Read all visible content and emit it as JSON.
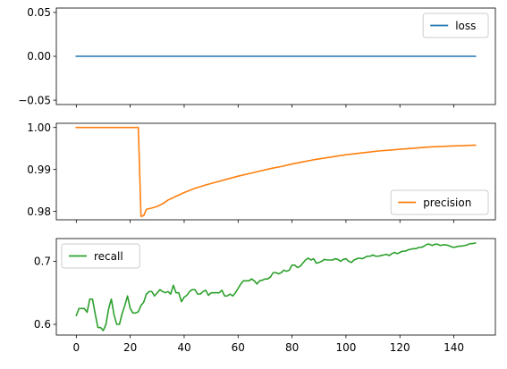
{
  "chart_data": [
    {
      "type": "line",
      "series": [
        {
          "name": "loss",
          "color": "#1f77b4",
          "x": [
            0,
            148
          ],
          "y": [
            0.0,
            0.0
          ]
        }
      ],
      "xlim": [
        -7.4,
        155.4
      ],
      "ylim": [
        -0.055,
        0.055
      ],
      "xticks": [
        0,
        20,
        40,
        60,
        80,
        100,
        120,
        140
      ],
      "yticks": [
        -0.05,
        0.0,
        0.05
      ],
      "ytick_labels": [
        "−0.05",
        "0.00",
        "0.05"
      ],
      "show_xtick_labels": false,
      "legend": "top-right",
      "grid": false
    },
    {
      "type": "line",
      "series": [
        {
          "name": "precision",
          "color": "#ff7f0e",
          "x": [
            0,
            23,
            24,
            25,
            26,
            28,
            30,
            32,
            34,
            36,
            40,
            44,
            48,
            52,
            56,
            60,
            64,
            68,
            72,
            76,
            80,
            84,
            88,
            92,
            96,
            100,
            104,
            108,
            112,
            116,
            120,
            124,
            128,
            132,
            136,
            140,
            144,
            148
          ],
          "y": [
            1.0,
            1.0,
            0.9788,
            0.979,
            0.9805,
            0.9808,
            0.9812,
            0.9818,
            0.9827,
            0.9833,
            0.9845,
            0.9855,
            0.9863,
            0.987,
            0.9877,
            0.9884,
            0.989,
            0.9896,
            0.9902,
            0.9907,
            0.9913,
            0.9918,
            0.9923,
            0.9927,
            0.9931,
            0.9935,
            0.9938,
            0.9941,
            0.9944,
            0.9946,
            0.9948,
            0.995,
            0.9952,
            0.9954,
            0.9955,
            0.9956,
            0.9957,
            0.9958
          ]
        }
      ],
      "xlim": [
        -7.4,
        155.4
      ],
      "ylim": [
        0.978,
        1.001
      ],
      "xticks": [
        0,
        20,
        40,
        60,
        80,
        100,
        120,
        140
      ],
      "yticks": [
        0.98,
        0.99,
        1.0
      ],
      "ytick_labels": [
        "0.98",
        "0.99",
        "1.00"
      ],
      "show_xtick_labels": false,
      "legend": "bottom-right",
      "grid": false
    },
    {
      "type": "line",
      "series": [
        {
          "name": "recall",
          "color": "#2ca02c",
          "x": [
            0,
            1,
            2,
            3,
            4,
            5,
            6,
            7,
            8,
            9,
            10,
            11,
            12,
            13,
            14,
            15,
            16,
            17,
            18,
            19,
            20,
            21,
            22,
            23,
            24,
            25,
            26,
            27,
            28,
            29,
            30,
            31,
            32,
            33,
            34,
            35,
            36,
            37,
            38,
            39,
            40,
            41,
            42,
            43,
            44,
            45,
            46,
            47,
            48,
            49,
            50,
            51,
            52,
            53,
            54,
            55,
            56,
            57,
            58,
            59,
            60,
            61,
            62,
            63,
            64,
            65,
            66,
            67,
            68,
            69,
            70,
            71,
            72,
            73,
            74,
            75,
            76,
            77,
            78,
            79,
            80,
            81,
            82,
            83,
            84,
            85,
            86,
            87,
            88,
            89,
            90,
            91,
            92,
            93,
            94,
            95,
            96,
            97,
            98,
            99,
            100,
            101,
            102,
            103,
            104,
            105,
            106,
            107,
            108,
            109,
            110,
            111,
            112,
            113,
            114,
            115,
            116,
            117,
            118,
            119,
            120,
            121,
            122,
            123,
            124,
            125,
            126,
            127,
            128,
            129,
            130,
            131,
            132,
            133,
            134,
            135,
            136,
            137,
            138,
            139,
            140,
            141,
            142,
            143,
            144,
            145,
            146,
            147,
            148
          ],
          "y": [
            0.614,
            0.625,
            0.625,
            0.625,
            0.619,
            0.64,
            0.64,
            0.617,
            0.595,
            0.595,
            0.59,
            0.6,
            0.625,
            0.64,
            0.615,
            0.6,
            0.6,
            0.617,
            0.63,
            0.645,
            0.625,
            0.618,
            0.618,
            0.62,
            0.63,
            0.635,
            0.648,
            0.652,
            0.652,
            0.645,
            0.65,
            0.655,
            0.652,
            0.65,
            0.652,
            0.648,
            0.662,
            0.65,
            0.65,
            0.636,
            0.643,
            0.646,
            0.652,
            0.655,
            0.655,
            0.648,
            0.648,
            0.652,
            0.654,
            0.646,
            0.65,
            0.65,
            0.65,
            0.65,
            0.654,
            0.645,
            0.645,
            0.648,
            0.645,
            0.65,
            0.657,
            0.664,
            0.669,
            0.669,
            0.669,
            0.672,
            0.669,
            0.664,
            0.669,
            0.67,
            0.672,
            0.672,
            0.675,
            0.682,
            0.682,
            0.68,
            0.682,
            0.686,
            0.684,
            0.686,
            0.694,
            0.694,
            0.69,
            0.692,
            0.697,
            0.702,
            0.705,
            0.702,
            0.704,
            0.697,
            0.698,
            0.7,
            0.703,
            0.702,
            0.702,
            0.702,
            0.704,
            0.703,
            0.7,
            0.703,
            0.704,
            0.7,
            0.698,
            0.702,
            0.704,
            0.705,
            0.704,
            0.706,
            0.708,
            0.708,
            0.71,
            0.708,
            0.708,
            0.709,
            0.71,
            0.711,
            0.709,
            0.712,
            0.714,
            0.712,
            0.714,
            0.716,
            0.716,
            0.718,
            0.719,
            0.72,
            0.72,
            0.722,
            0.722,
            0.724,
            0.727,
            0.727,
            0.725,
            0.727,
            0.727,
            0.725,
            0.726,
            0.726,
            0.725,
            0.723,
            0.722,
            0.723,
            0.724,
            0.724,
            0.725,
            0.726,
            0.728,
            0.728,
            0.729
          ]
        }
      ],
      "xlim": [
        -7.4,
        155.4
      ],
      "ylim": [
        0.583,
        0.736
      ],
      "xticks": [
        0,
        20,
        40,
        60,
        80,
        100,
        120,
        140
      ],
      "yticks": [
        0.6,
        0.7
      ],
      "ytick_labels": [
        "0.6",
        "0.7"
      ],
      "show_xtick_labels": true,
      "legend": "top-left",
      "grid": false
    }
  ]
}
